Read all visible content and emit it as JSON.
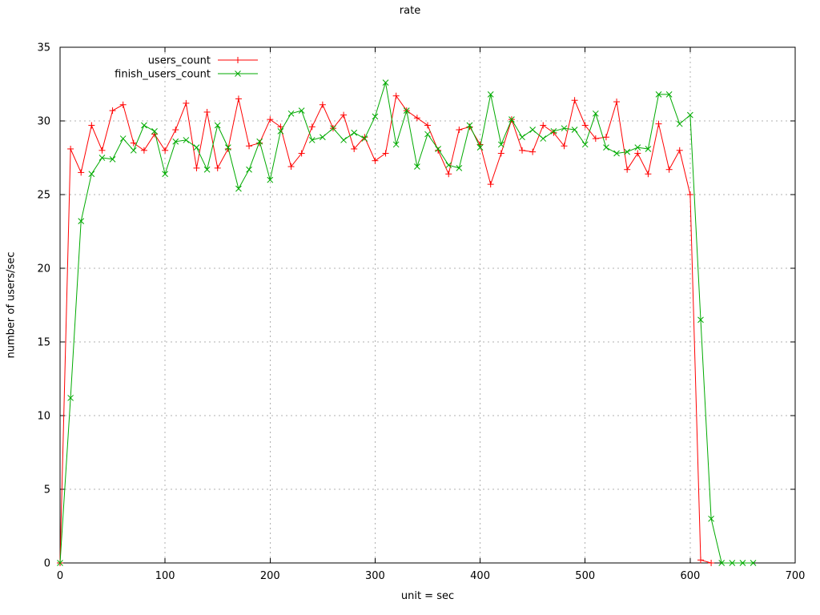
{
  "chart_data": {
    "type": "line",
    "title": "rate",
    "xlabel": "unit = sec",
    "ylabel": "number of users/sec",
    "xlim": [
      0,
      700
    ],
    "ylim": [
      0,
      35
    ],
    "xticks": [
      0,
      100,
      200,
      300,
      400,
      500,
      600,
      700
    ],
    "yticks": [
      0,
      5,
      10,
      15,
      20,
      25,
      30,
      35
    ],
    "grid": "dashed",
    "grid_color": "#b0b0b0",
    "axis_color": "#000000",
    "background": "#ffffff",
    "legend_position": "top-left-inside",
    "series": [
      {
        "name": "users_count",
        "color": "#ff0000",
        "marker": "plus",
        "x_start": 0,
        "x_step": 10,
        "values": [
          0,
          28.1,
          26.5,
          29.7,
          28.0,
          30.7,
          31.1,
          28.5,
          28.0,
          29.1,
          28.0,
          29.4,
          31.2,
          26.8,
          30.6,
          26.8,
          28.1,
          31.5,
          28.3,
          28.5,
          30.1,
          29.6,
          26.9,
          27.8,
          29.6,
          31.1,
          29.5,
          30.4,
          28.1,
          28.9,
          27.3,
          27.8,
          31.7,
          30.7,
          30.2,
          29.7,
          28.0,
          26.4,
          29.4,
          29.6,
          28.4,
          25.7,
          27.8,
          30.1,
          28.0,
          27.9,
          29.7,
          29.2,
          28.3,
          31.4,
          29.7,
          28.8,
          28.9,
          31.3,
          26.7,
          27.8,
          26.4,
          29.8,
          26.7,
          28.0,
          25.0,
          0.2,
          0
        ]
      },
      {
        "name": "finish_users_count",
        "color": "#00aa00",
        "marker": "cross",
        "x_start": 0,
        "x_step": 10,
        "values": [
          0,
          11.2,
          23.2,
          26.4,
          27.5,
          27.4,
          28.8,
          28.0,
          29.7,
          29.3,
          26.4,
          28.6,
          28.7,
          28.2,
          26.7,
          29.7,
          28.2,
          25.4,
          26.7,
          28.6,
          26.0,
          29.3,
          30.5,
          30.7,
          28.7,
          28.9,
          29.5,
          28.7,
          29.2,
          28.8,
          30.3,
          32.6,
          28.4,
          30.7,
          26.9,
          29.1,
          28.1,
          27.0,
          26.8,
          29.7,
          28.2,
          31.8,
          28.4,
          30.1,
          28.9,
          29.4,
          28.8,
          29.3,
          29.5,
          29.4,
          28.4,
          30.5,
          28.2,
          27.8,
          27.9,
          28.2,
          28.1,
          31.8,
          31.8,
          29.8,
          30.4,
          16.5,
          3.0,
          0,
          0,
          0,
          0
        ]
      }
    ]
  }
}
